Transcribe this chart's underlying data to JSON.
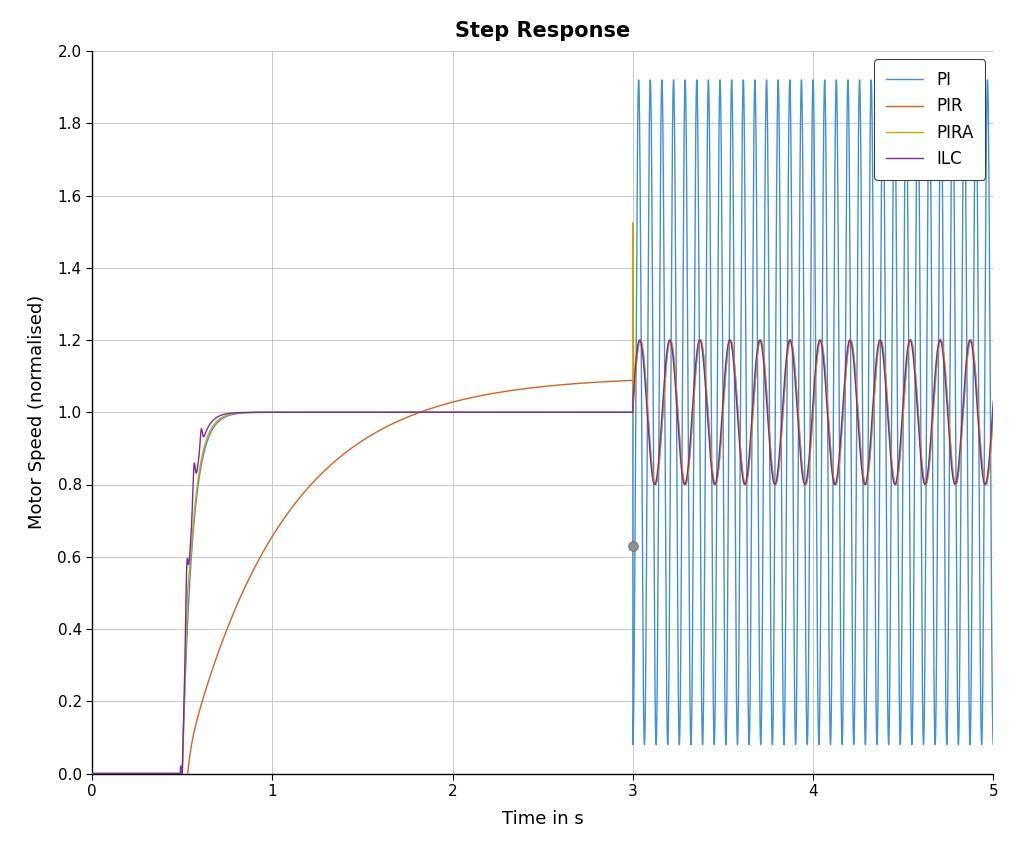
{
  "title": "Step Response",
  "xlabel": "Time in s",
  "ylabel": "Motor Speed (normalised)",
  "xlim": [
    0,
    5
  ],
  "ylim": [
    0,
    2
  ],
  "yticks": [
    0,
    0.2,
    0.4,
    0.6,
    0.8,
    1.0,
    1.2,
    1.4,
    1.6,
    1.8,
    2.0
  ],
  "xticks": [
    0,
    1,
    2,
    3,
    4,
    5
  ],
  "colors": {
    "PI": "#4191d4",
    "PIR": "#d95f1e",
    "PIRA": "#c8a800",
    "ILC": "#7b2d9e"
  },
  "step_start": 0.5,
  "load_step_time": 3.0,
  "pi_ripple_freq": 15.5,
  "pir_ripple_freq": 6.0,
  "pira_ripple_freq": 6.0,
  "ilc_ripple_freq": 6.0,
  "background_color": "#ffffff",
  "grid_color": "#b0b0b0",
  "linewidth": 1.0
}
